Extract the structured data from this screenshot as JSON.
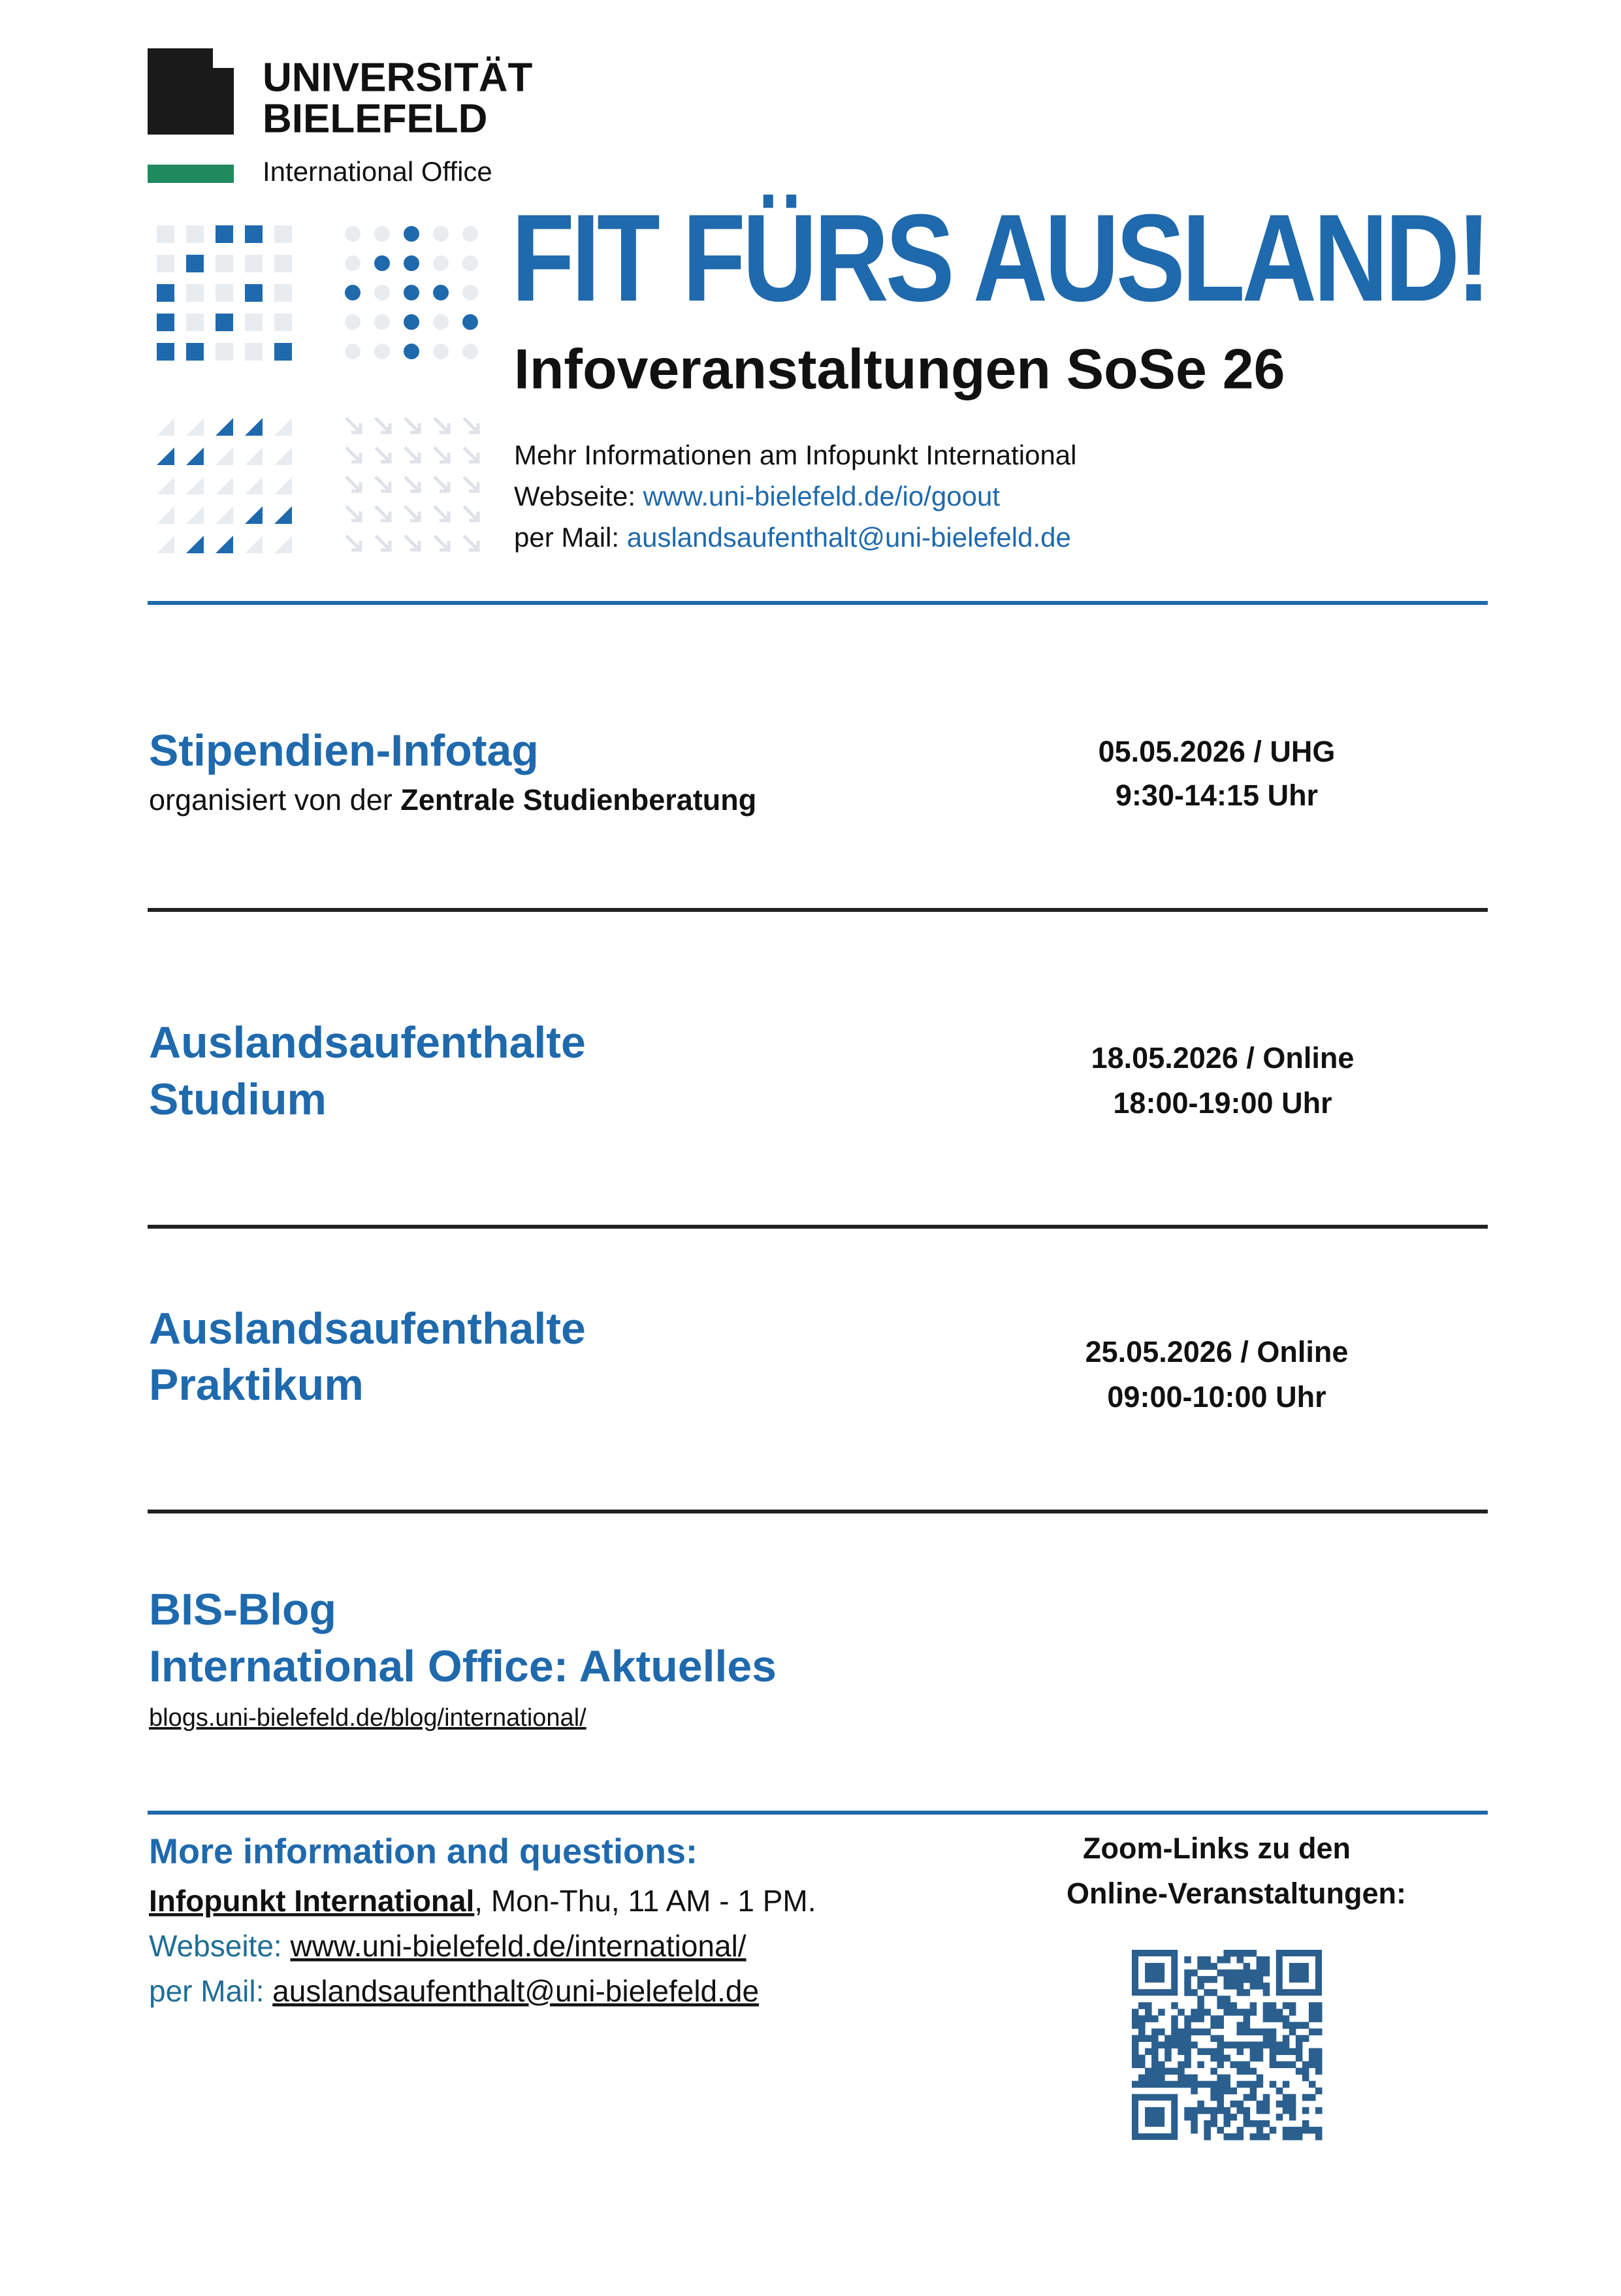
{
  "header": {
    "logo": {
      "line1": "UNIVERSITÄT",
      "line2": "BIELEFELD",
      "unit": "International Office"
    },
    "title": "FIT FÜRS AUSLAND!",
    "subtitle": "Infoveranstaltungen SoSe 26",
    "info": {
      "intro": "Mehr Informationen am Infopunkt International",
      "web_label": "Webseite:",
      "web": "www.uni-bielefeld.de/io/goout",
      "mail_label": "per Mail:",
      "mail": "auslandsaufenthalt@uni-bielefeld.de"
    }
  },
  "events": [
    {
      "title": [
        "Stipendien-Infotag"
      ],
      "organizer_prefix": "organisiert von der",
      "organizer": "Zentrale Studienberatung",
      "date": "05.05.2026 / UHG",
      "time": "9:30-14:15 Uhr"
    },
    {
      "title": [
        "Auslandsaufenthalte",
        "Studium"
      ],
      "date": "18.05.2026 / Online",
      "time": "18:00-19:00 Uhr"
    },
    {
      "title": [
        "Auslandsaufenthalte",
        "Praktikum"
      ],
      "date": "25.05.2026 / Online",
      "time": "09:00-10:00 Uhr"
    }
  ],
  "blog": {
    "title": [
      "BIS-Blog",
      "International Office: Aktuelles"
    ],
    "link": "blogs.uni-bielefeld.de/blog/international/"
  },
  "contact": {
    "heading": "More information and questions:",
    "office": "Infopunkt International",
    "hours": ", Mon-Thu, 11 AM - 1 PM.",
    "web_label": "Webseite:",
    "web": "www.uni-bielefeld.de/international/",
    "mail_label": "per Mail:",
    "mail": "auslandsaufenthalt@uni-bielefeld.de"
  },
  "zoom": {
    "text": [
      "Zoom-Links zu den",
      "Online-Veranstaltungen:"
    ]
  }
}
